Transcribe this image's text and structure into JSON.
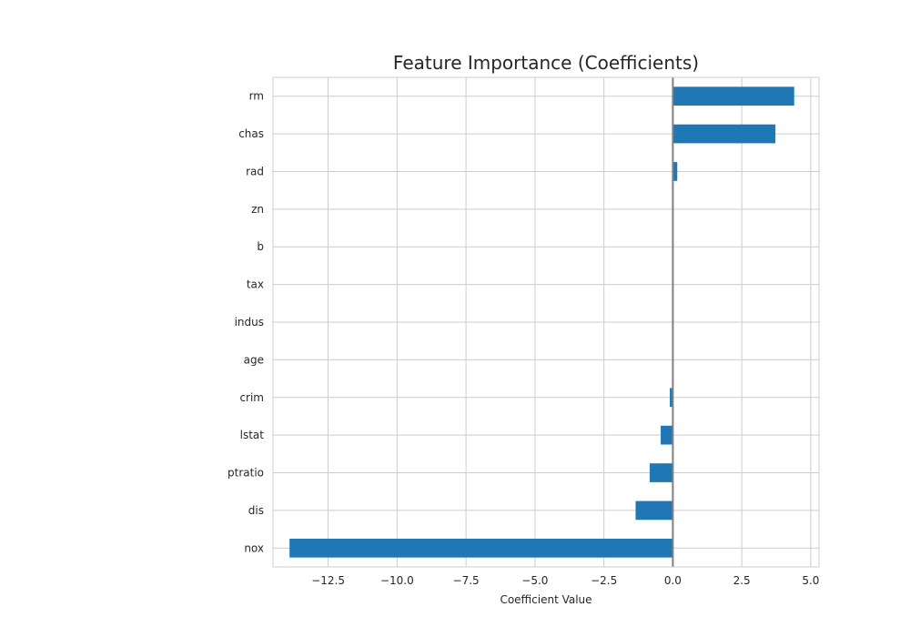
{
  "chart_data": {
    "type": "bar",
    "orientation": "horizontal",
    "title": "Feature Importance (Coefficients)",
    "xlabel": "Coefficient Value",
    "ylabel": "",
    "xlim": [
      -14.5,
      5.3
    ],
    "xticks": [
      -12.5,
      -10.0,
      -7.5,
      -5.0,
      -2.5,
      0.0,
      2.5,
      5.0
    ],
    "xtick_labels": [
      "−12.5",
      "−10.0",
      "−7.5",
      "−5.0",
      "−2.5",
      "0.0",
      "2.5",
      "5.0"
    ],
    "grid": true,
    "reference_line": 0,
    "categories": [
      "rm",
      "chas",
      "rad",
      "zn",
      "b",
      "tax",
      "indus",
      "age",
      "crim",
      "lstat",
      "ptratio",
      "dis",
      "nox"
    ],
    "values": [
      4.4,
      3.72,
      0.16,
      0.02,
      0.01,
      -0.01,
      0.01,
      0.0,
      -0.11,
      -0.44,
      -0.84,
      -1.35,
      -13.9
    ],
    "colors": {
      "bar": "#1f77b4",
      "grid": "#cccccc",
      "zero_line": "#808080",
      "text": "#262626"
    }
  }
}
